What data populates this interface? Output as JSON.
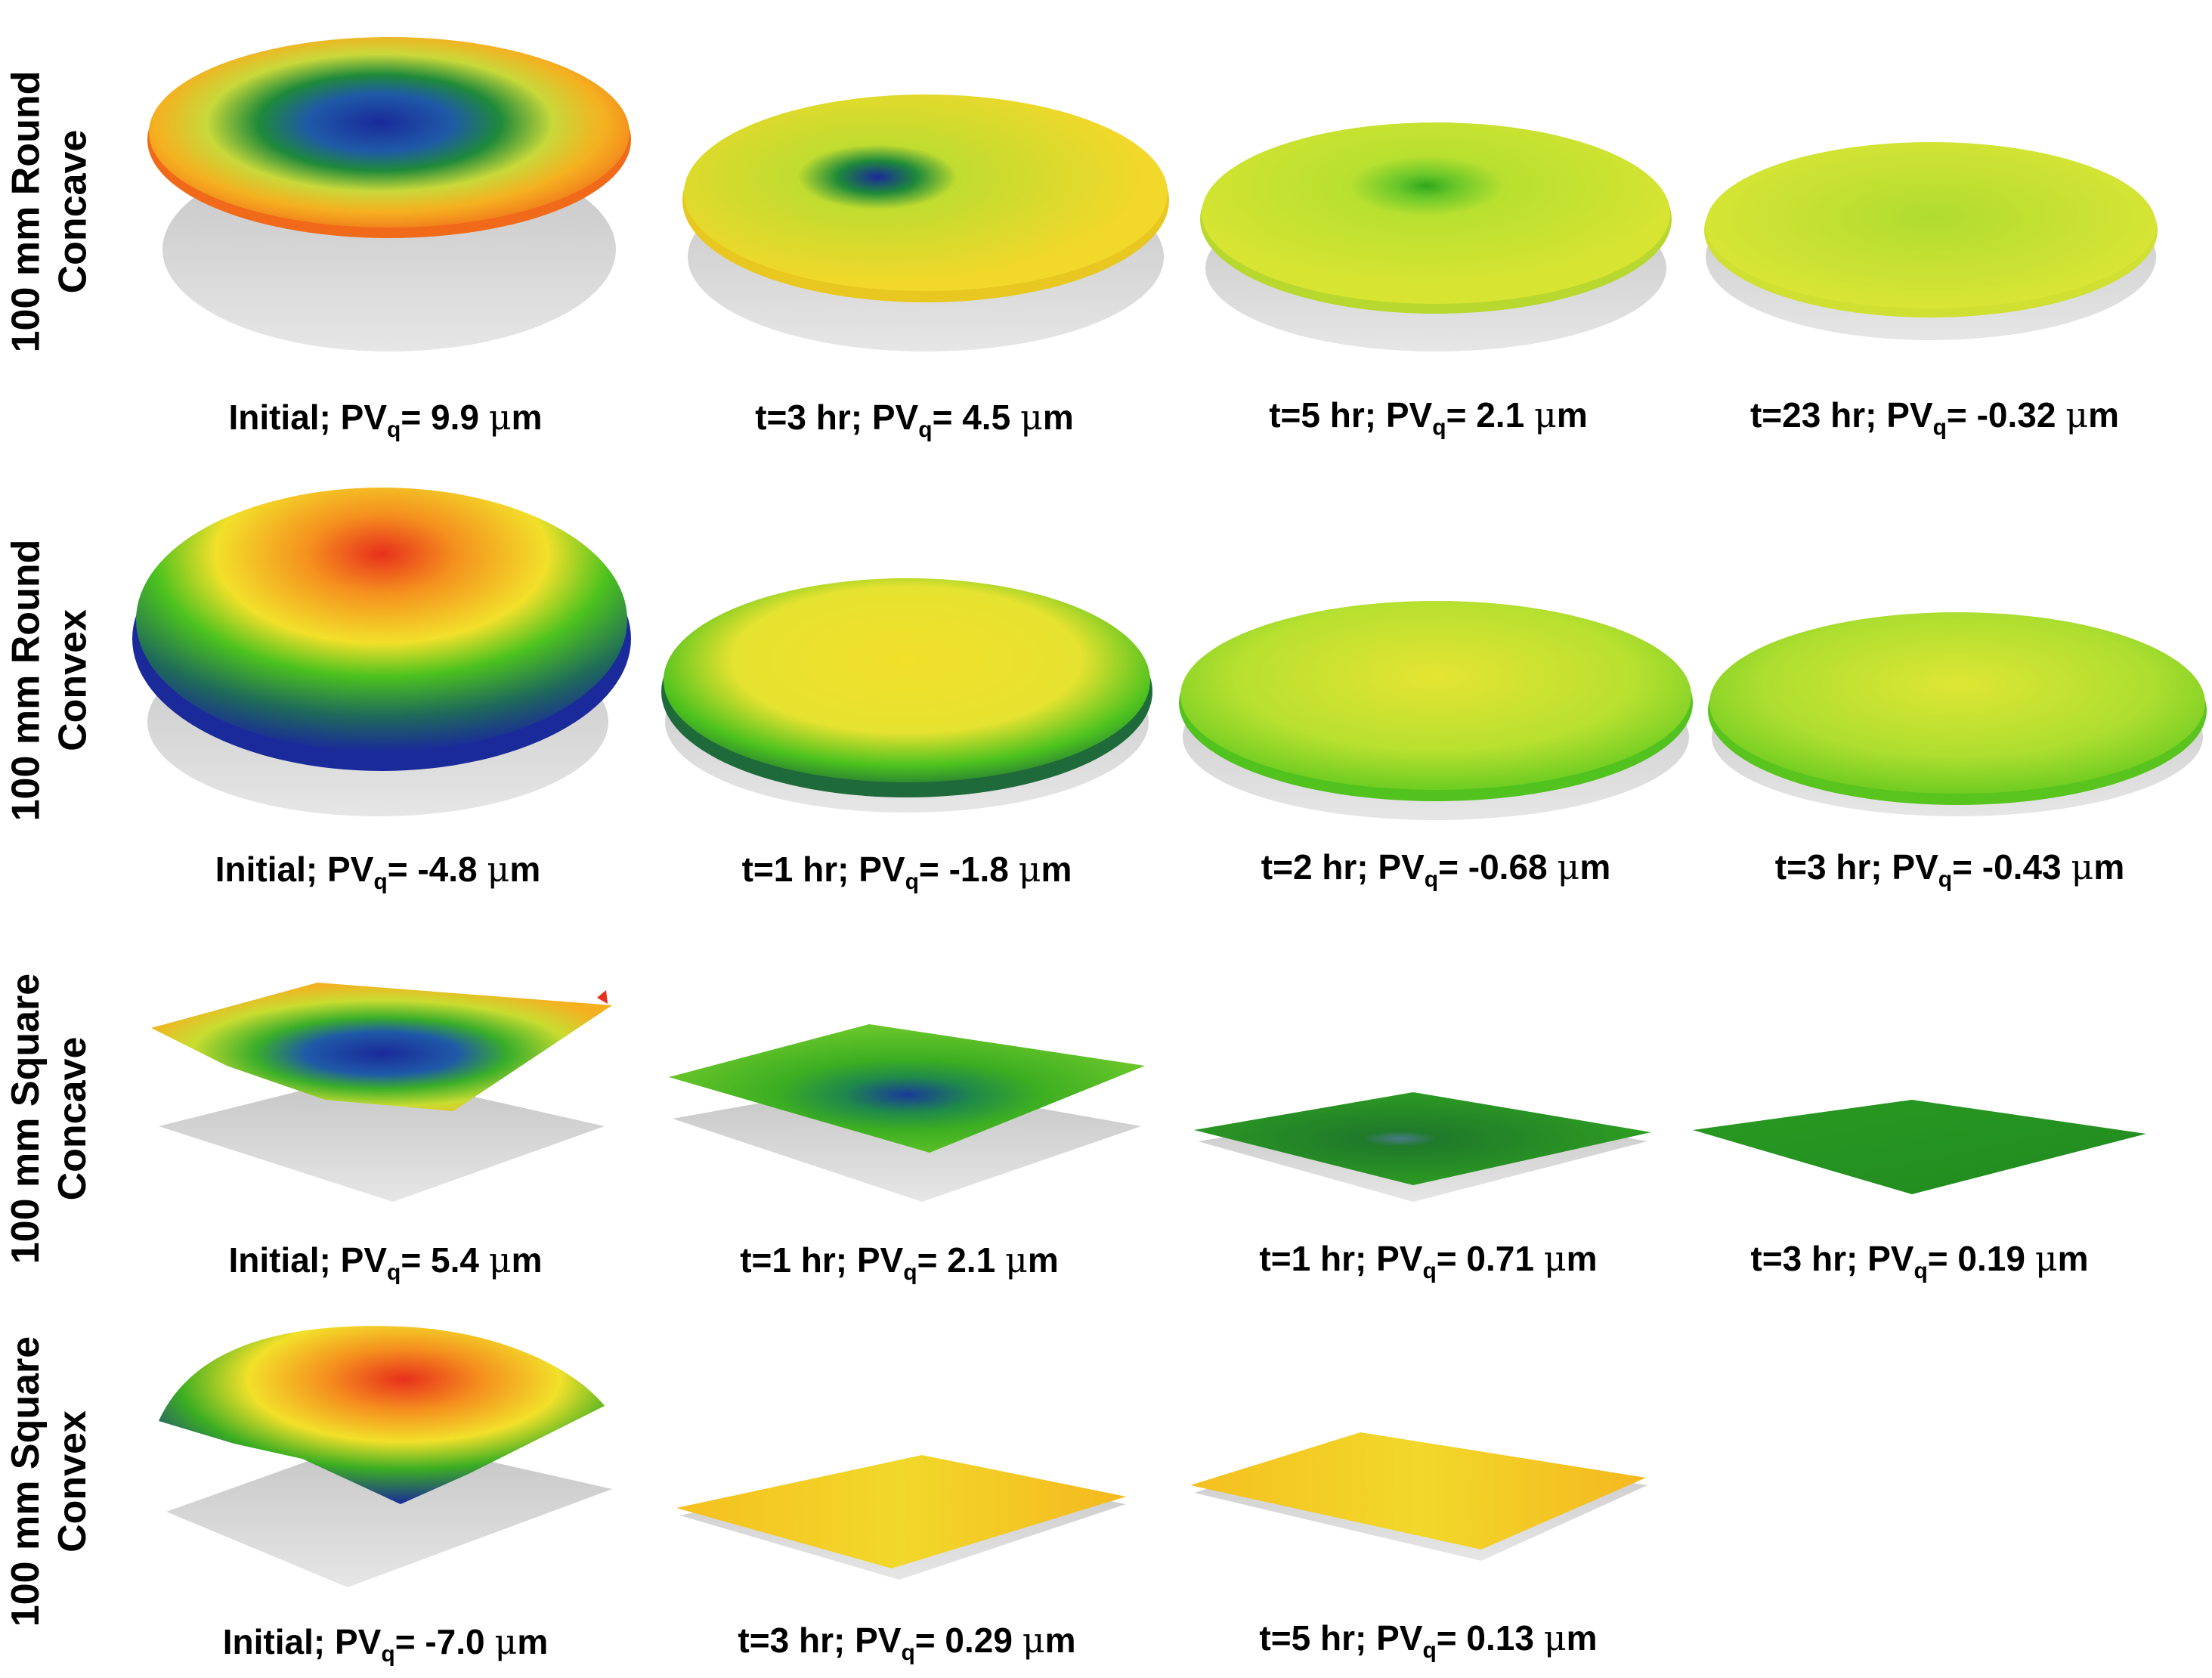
{
  "rows": [
    {
      "label_line1": "100 mm Round",
      "label_line2": "Concave",
      "panels": [
        {
          "time": "Initial;",
          "pv": "= 9.9",
          "unit": "m"
        },
        {
          "time": "t=3 hr; ",
          "pv": "= 4.5",
          "unit": "m"
        },
        {
          "time": "t=5 hr;",
          "pv": "= 2.1",
          "unit": "m"
        },
        {
          "time": "t=23 hr;",
          "pv": "= -0.32",
          "unit": "m"
        }
      ]
    },
    {
      "label_line1": "100 mm Round",
      "label_line2": "Convex",
      "panels": [
        {
          "time": "Initial;",
          "pv": "= -4.8",
          "unit": "m"
        },
        {
          "time": "t=1 hr; ",
          "pv": "= -1.8",
          "unit": "m"
        },
        {
          "time": "t=2 hr;",
          "pv": "= -0.68",
          "unit": "m"
        },
        {
          "time": "t=3 hr;",
          "pv": "= -0.43",
          "unit": "m"
        }
      ]
    },
    {
      "label_line1": "100 mm Square",
      "label_line2": "Concave",
      "panels": [
        {
          "time": "Initial;",
          "pv": "= 5.4",
          "unit": "m"
        },
        {
          "time": "t=1 hr; ",
          "pv": "= 2.1",
          "unit": "m"
        },
        {
          "time": "t=1 hr;",
          "pv": "= 0.71",
          "unit": "m"
        },
        {
          "time": "t=3 hr;",
          "pv": "= 0.19",
          "unit": "m"
        }
      ]
    },
    {
      "label_line1": "100 mm Square",
      "label_line2": "Convex",
      "panels": [
        {
          "time": "Initial;",
          "pv": "= -7.0",
          "unit": "m"
        },
        {
          "time": "t=3 hr;",
          "pv": "= 0.29",
          "unit": "m"
        },
        {
          "time": "t=5 hr;",
          "pv": "= 0.13",
          "unit": "m"
        }
      ]
    }
  ],
  "pv_symbol": "PV",
  "pv_subscript": "q",
  "mu_symbol": "μ",
  "colors": {
    "red": "#e8301c",
    "orange": "#f59a1e",
    "yellow": "#f2e02a",
    "yellow_green": "#c8e23a",
    "green": "#4cc21e",
    "dark_green": "#1f8a1f",
    "blue": "#1a2a9a",
    "shadow": "#cfcfcf"
  }
}
